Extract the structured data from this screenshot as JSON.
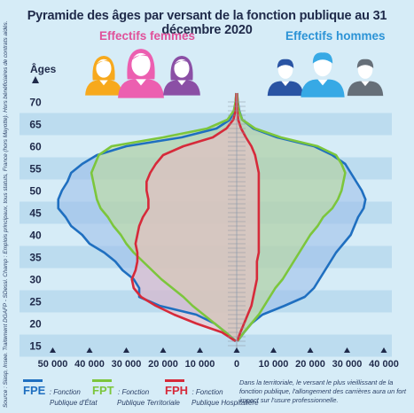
{
  "title": "Pyramide des âges par versant de la fonction publique au 31 décembre 2020",
  "women_label": "Effectifs femmes",
  "men_label": "Effectifs hommes",
  "source": "Source : Siasp, Insee. Traitement DGAFP - SDessi. Champ : Emplois principaux, tous statuts, France (hors Mayotte). Hors bénéficiaires de contrats aidés.",
  "note": "Dans la territoriale, le versant le plus vieillissant de la fonction publique, l'allongement des carrières aura un fort impact sur l'usure professionnelle.",
  "legend": [
    {
      "code": "FPE",
      "desc_line1": ": Fonction",
      "desc_line2": "Publique d'État",
      "color": "#1f6fc0"
    },
    {
      "code": "FPT",
      "desc_line1": ": Fonction",
      "desc_line2": "Publique Territoriale",
      "color": "#7cc63c"
    },
    {
      "code": "FPH",
      "desc_line1": ": Fonction",
      "desc_line2": "Publique Hospitalière",
      "color": "#d62a3a"
    }
  ],
  "chart_data": {
    "type": "area",
    "ylabel": "Âges",
    "y_ticks": [
      15,
      20,
      25,
      30,
      35,
      40,
      45,
      50,
      55,
      60,
      65,
      70
    ],
    "x_ticks": [
      -50000,
      -40000,
      -30000,
      -20000,
      -10000,
      0,
      10000,
      20000,
      30000,
      40000
    ],
    "x_tick_labels": [
      "50 000",
      "40 000",
      "30 000",
      "20 000",
      "10 000",
      "0",
      "10 000",
      "20 000",
      "30 000",
      "40 000"
    ],
    "xlim": [
      -50000,
      50000
    ],
    "ylim": [
      14,
      72
    ],
    "series": [
      {
        "name": "FPE",
        "color": "#1f6fc0",
        "fill": "#9bbdea",
        "ages": [
          16,
          18,
          20,
          22,
          24,
          26,
          28,
          30,
          32,
          34,
          36,
          38,
          40,
          42,
          44,
          46,
          48,
          50,
          52,
          54,
          56,
          58,
          60,
          62,
          64,
          66,
          68,
          70,
          72
        ],
        "women": [
          200,
          3000,
          6000,
          11000,
          21000,
          26500,
          26500,
          28000,
          31000,
          33000,
          36000,
          40000,
          42000,
          45000,
          46500,
          48500,
          48500,
          47500,
          46000,
          45000,
          42000,
          38000,
          30000,
          15000,
          5500,
          1800,
          700,
          300,
          100
        ],
        "men": [
          200,
          2000,
          4000,
          7000,
          13000,
          18500,
          21000,
          22500,
          24000,
          25500,
          27000,
          29000,
          31000,
          32000,
          33000,
          34500,
          35000,
          34000,
          32500,
          31000,
          29500,
          26000,
          21000,
          11000,
          4500,
          1500,
          700,
          300,
          100
        ]
      },
      {
        "name": "FPT",
        "color": "#7cc63c",
        "fill": "#bddd94",
        "ages": [
          16,
          18,
          20,
          22,
          24,
          26,
          28,
          30,
          32,
          34,
          36,
          38,
          40,
          42,
          44,
          46,
          48,
          50,
          52,
          54,
          56,
          58,
          60,
          62,
          64,
          66,
          68,
          70,
          72
        ],
        "women": [
          300,
          3000,
          6000,
          9000,
          12000,
          14500,
          17500,
          20500,
          23000,
          25500,
          28000,
          30000,
          31500,
          33500,
          35000,
          37000,
          38000,
          38500,
          39000,
          39500,
          38500,
          37500,
          34000,
          20000,
          8000,
          2500,
          800,
          300,
          100
        ],
        "men": [
          200,
          2000,
          4000,
          6000,
          7500,
          9000,
          10500,
          12500,
          14000,
          15500,
          17000,
          18500,
          20000,
          22000,
          23500,
          26000,
          27500,
          28500,
          29000,
          29500,
          28500,
          27000,
          22000,
          12000,
          5000,
          1500,
          600,
          250,
          100
        ]
      },
      {
        "name": "FPH",
        "color": "#d62a3a",
        "fill": "#ecb9c4",
        "ages": [
          16,
          18,
          20,
          22,
          24,
          26,
          28,
          30,
          32,
          34,
          36,
          38,
          40,
          42,
          44,
          46,
          48,
          50,
          52,
          54,
          56,
          58,
          60,
          62,
          64,
          66,
          68,
          70,
          72
        ],
        "women": [
          300,
          4000,
          11000,
          17000,
          22000,
          26000,
          28000,
          28500,
          27500,
          27000,
          27000,
          27500,
          27000,
          26500,
          25500,
          24000,
          24000,
          24500,
          24500,
          23500,
          22000,
          20000,
          14500,
          6500,
          2800,
          900,
          300,
          150,
          50
        ],
        "men": [
          100,
          1000,
          2000,
          3000,
          4000,
          4500,
          5000,
          5500,
          5500,
          5500,
          6000,
          6000,
          6000,
          6000,
          6000,
          6000,
          6000,
          6000,
          6000,
          6000,
          5500,
          5000,
          4000,
          2500,
          1200,
          400,
          150,
          60,
          30
        ]
      }
    ]
  },
  "icons": {
    "women": [
      {
        "name": "woman-icon",
        "color": "#f7a91d"
      },
      {
        "name": "woman-icon",
        "color": "#ec5fb0"
      },
      {
        "name": "woman-icon",
        "color": "#8b4fa5"
      }
    ],
    "men": [
      {
        "name": "man-icon",
        "color": "#2a54a3"
      },
      {
        "name": "man-icon",
        "color": "#37a9e5"
      },
      {
        "name": "man-icon",
        "color": "#666f78"
      }
    ]
  }
}
